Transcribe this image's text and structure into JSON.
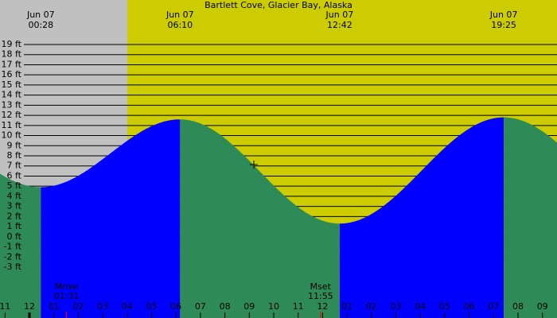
{
  "title": "Bartlett Cove, Glacier Bay, Alaska",
  "tides": [
    {
      "date": "Jun 07",
      "time": "00:28",
      "height": 4.9
    },
    {
      "date": "Jun 07",
      "time": "06:10",
      "height": 11.6
    },
    {
      "date": "Jun 07",
      "time": "12:42",
      "height": 1.3
    },
    {
      "date": "Jun 07",
      "time": "19:25",
      "height": 11.8
    }
  ],
  "height_lim": [
    -3,
    19
  ],
  "height_ticks": [
    {
      "value": 19,
      "label": "19 ft"
    },
    {
      "value": 18,
      "label": "18 ft"
    },
    {
      "value": 17,
      "label": "17 ft"
    },
    {
      "value": 16,
      "label": "16 ft"
    },
    {
      "value": 15,
      "label": "15 ft"
    },
    {
      "value": 14,
      "label": "14 ft"
    },
    {
      "value": 13,
      "label": "13 ft"
    },
    {
      "value": 12,
      "label": "12 ft"
    },
    {
      "value": 11,
      "label": "11 ft"
    },
    {
      "value": 10,
      "label": "10 ft"
    },
    {
      "value": 9,
      "label": "9 ft"
    },
    {
      "value": 8,
      "label": "8 ft"
    },
    {
      "value": 7,
      "label": "7 ft"
    },
    {
      "value": 6,
      "label": "6 ft"
    },
    {
      "value": 5,
      "label": "5 ft"
    },
    {
      "value": 4,
      "label": "4 ft"
    },
    {
      "value": 3,
      "label": "3 ft"
    },
    {
      "value": 2,
      "label": "2 ft"
    },
    {
      "value": 1,
      "label": "1 ft"
    },
    {
      "value": 0,
      "label": "0 ft"
    },
    {
      "value": -1,
      "label": "-1 ft"
    },
    {
      "value": -2,
      "label": "-2 ft"
    },
    {
      "value": -3,
      "label": "-3 ft"
    }
  ],
  "hour_ticks": [
    {
      "value": -1,
      "label": "11"
    },
    {
      "value": 0,
      "label": "12"
    },
    {
      "value": 1,
      "label": "01"
    },
    {
      "value": 2,
      "label": "02"
    },
    {
      "value": 3,
      "label": "03"
    },
    {
      "value": 4,
      "label": "04"
    },
    {
      "value": 5,
      "label": "05"
    },
    {
      "value": 6,
      "label": "06"
    },
    {
      "value": 7,
      "label": "07"
    },
    {
      "value": 8,
      "label": "08"
    },
    {
      "value": 9,
      "label": "09"
    },
    {
      "value": 10,
      "label": "10"
    },
    {
      "value": 11,
      "label": "11"
    },
    {
      "value": 12,
      "label": "12"
    },
    {
      "value": 13,
      "label": "01"
    },
    {
      "value": 14,
      "label": "02"
    },
    {
      "value": 15,
      "label": "03"
    },
    {
      "value": 16,
      "label": "04"
    },
    {
      "value": 17,
      "label": "05"
    },
    {
      "value": 18,
      "label": "06"
    },
    {
      "value": 19,
      "label": "07"
    },
    {
      "value": 20,
      "label": "08"
    },
    {
      "value": 21,
      "label": "09"
    }
  ],
  "moon": [
    {
      "label": "Mrise",
      "time": "01:31"
    },
    {
      "label": "Mset",
      "time": "11:55"
    }
  ]
}
